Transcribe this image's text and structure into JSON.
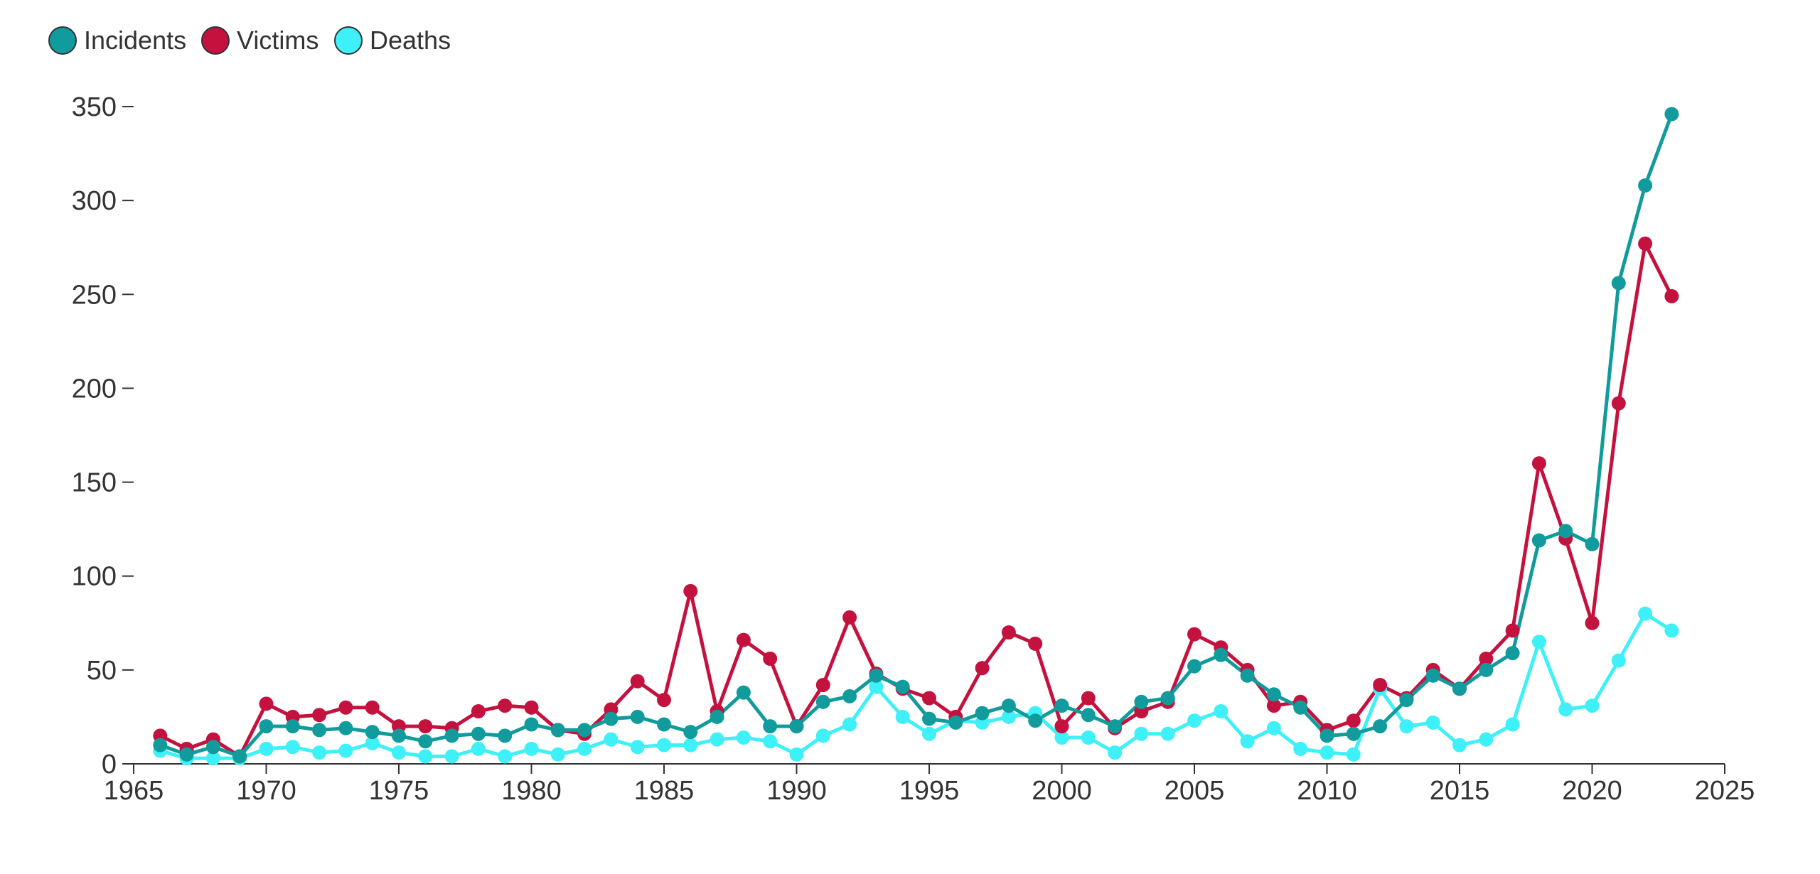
{
  "chart_data": {
    "type": "line",
    "title": "",
    "xlabel": "",
    "ylabel": "",
    "xlim": [
      1965,
      2025
    ],
    "ylim": [
      0,
      350
    ],
    "x_ticks": [
      "1965",
      "1970",
      "1975",
      "1980",
      "1985",
      "1990",
      "1995",
      "2000",
      "2005",
      "2010",
      "2015",
      "2020",
      "2025"
    ],
    "y_ticks": [
      "0",
      "50",
      "100",
      "150",
      "200",
      "250",
      "300",
      "350"
    ],
    "grid": false,
    "legend_position": "top-left",
    "x": [
      1966,
      1967,
      1968,
      1969,
      1970,
      1971,
      1972,
      1973,
      1974,
      1975,
      1976,
      1977,
      1978,
      1979,
      1980,
      1981,
      1982,
      1983,
      1984,
      1985,
      1986,
      1987,
      1988,
      1989,
      1990,
      1991,
      1992,
      1993,
      1994,
      1995,
      1996,
      1997,
      1998,
      1999,
      2000,
      2001,
      2002,
      2003,
      2004,
      2005,
      2006,
      2007,
      2008,
      2009,
      2010,
      2011,
      2012,
      2013,
      2014,
      2015,
      2016,
      2017,
      2018,
      2019,
      2020,
      2021,
      2022,
      2023
    ],
    "series": [
      {
        "name": "Incidents",
        "color": "#119b9c",
        "values": [
          10,
          5,
          9,
          4,
          20,
          20,
          18,
          19,
          17,
          15,
          12,
          15,
          16,
          15,
          21,
          18,
          18,
          24,
          25,
          21,
          17,
          25,
          38,
          20,
          20,
          33,
          36,
          47,
          41,
          24,
          22,
          27,
          31,
          23,
          31,
          26,
          20,
          33,
          35,
          52,
          58,
          47,
          37,
          30,
          15,
          16,
          20,
          34,
          47,
          40,
          50,
          59,
          119,
          124,
          117,
          256,
          308,
          346
        ]
      },
      {
        "name": "Victims",
        "color": "#c4123f",
        "values": [
          15,
          8,
          13,
          4,
          32,
          25,
          26,
          30,
          30,
          20,
          20,
          19,
          28,
          31,
          30,
          18,
          16,
          29,
          44,
          34,
          92,
          28,
          66,
          56,
          20,
          42,
          78,
          48,
          40,
          35,
          25,
          51,
          70,
          64,
          20,
          35,
          19,
          28,
          33,
          69,
          62,
          50,
          31,
          33,
          18,
          23,
          42,
          35,
          50,
          40,
          56,
          71,
          160,
          120,
          75,
          192,
          277,
          249
        ]
      },
      {
        "name": "Deaths",
        "color": "#3ef0f7",
        "values": [
          7,
          3,
          3,
          3,
          8,
          9,
          6,
          7,
          11,
          6,
          4,
          4,
          8,
          4,
          8,
          5,
          8,
          13,
          9,
          10,
          10,
          13,
          14,
          12,
          5,
          15,
          21,
          41,
          25,
          16,
          23,
          22,
          25,
          27,
          14,
          14,
          6,
          16,
          16,
          23,
          28,
          12,
          19,
          8,
          6,
          5,
          40,
          20,
          22,
          10,
          13,
          21,
          65,
          29,
          31,
          55,
          80,
          71
        ]
      }
    ]
  }
}
